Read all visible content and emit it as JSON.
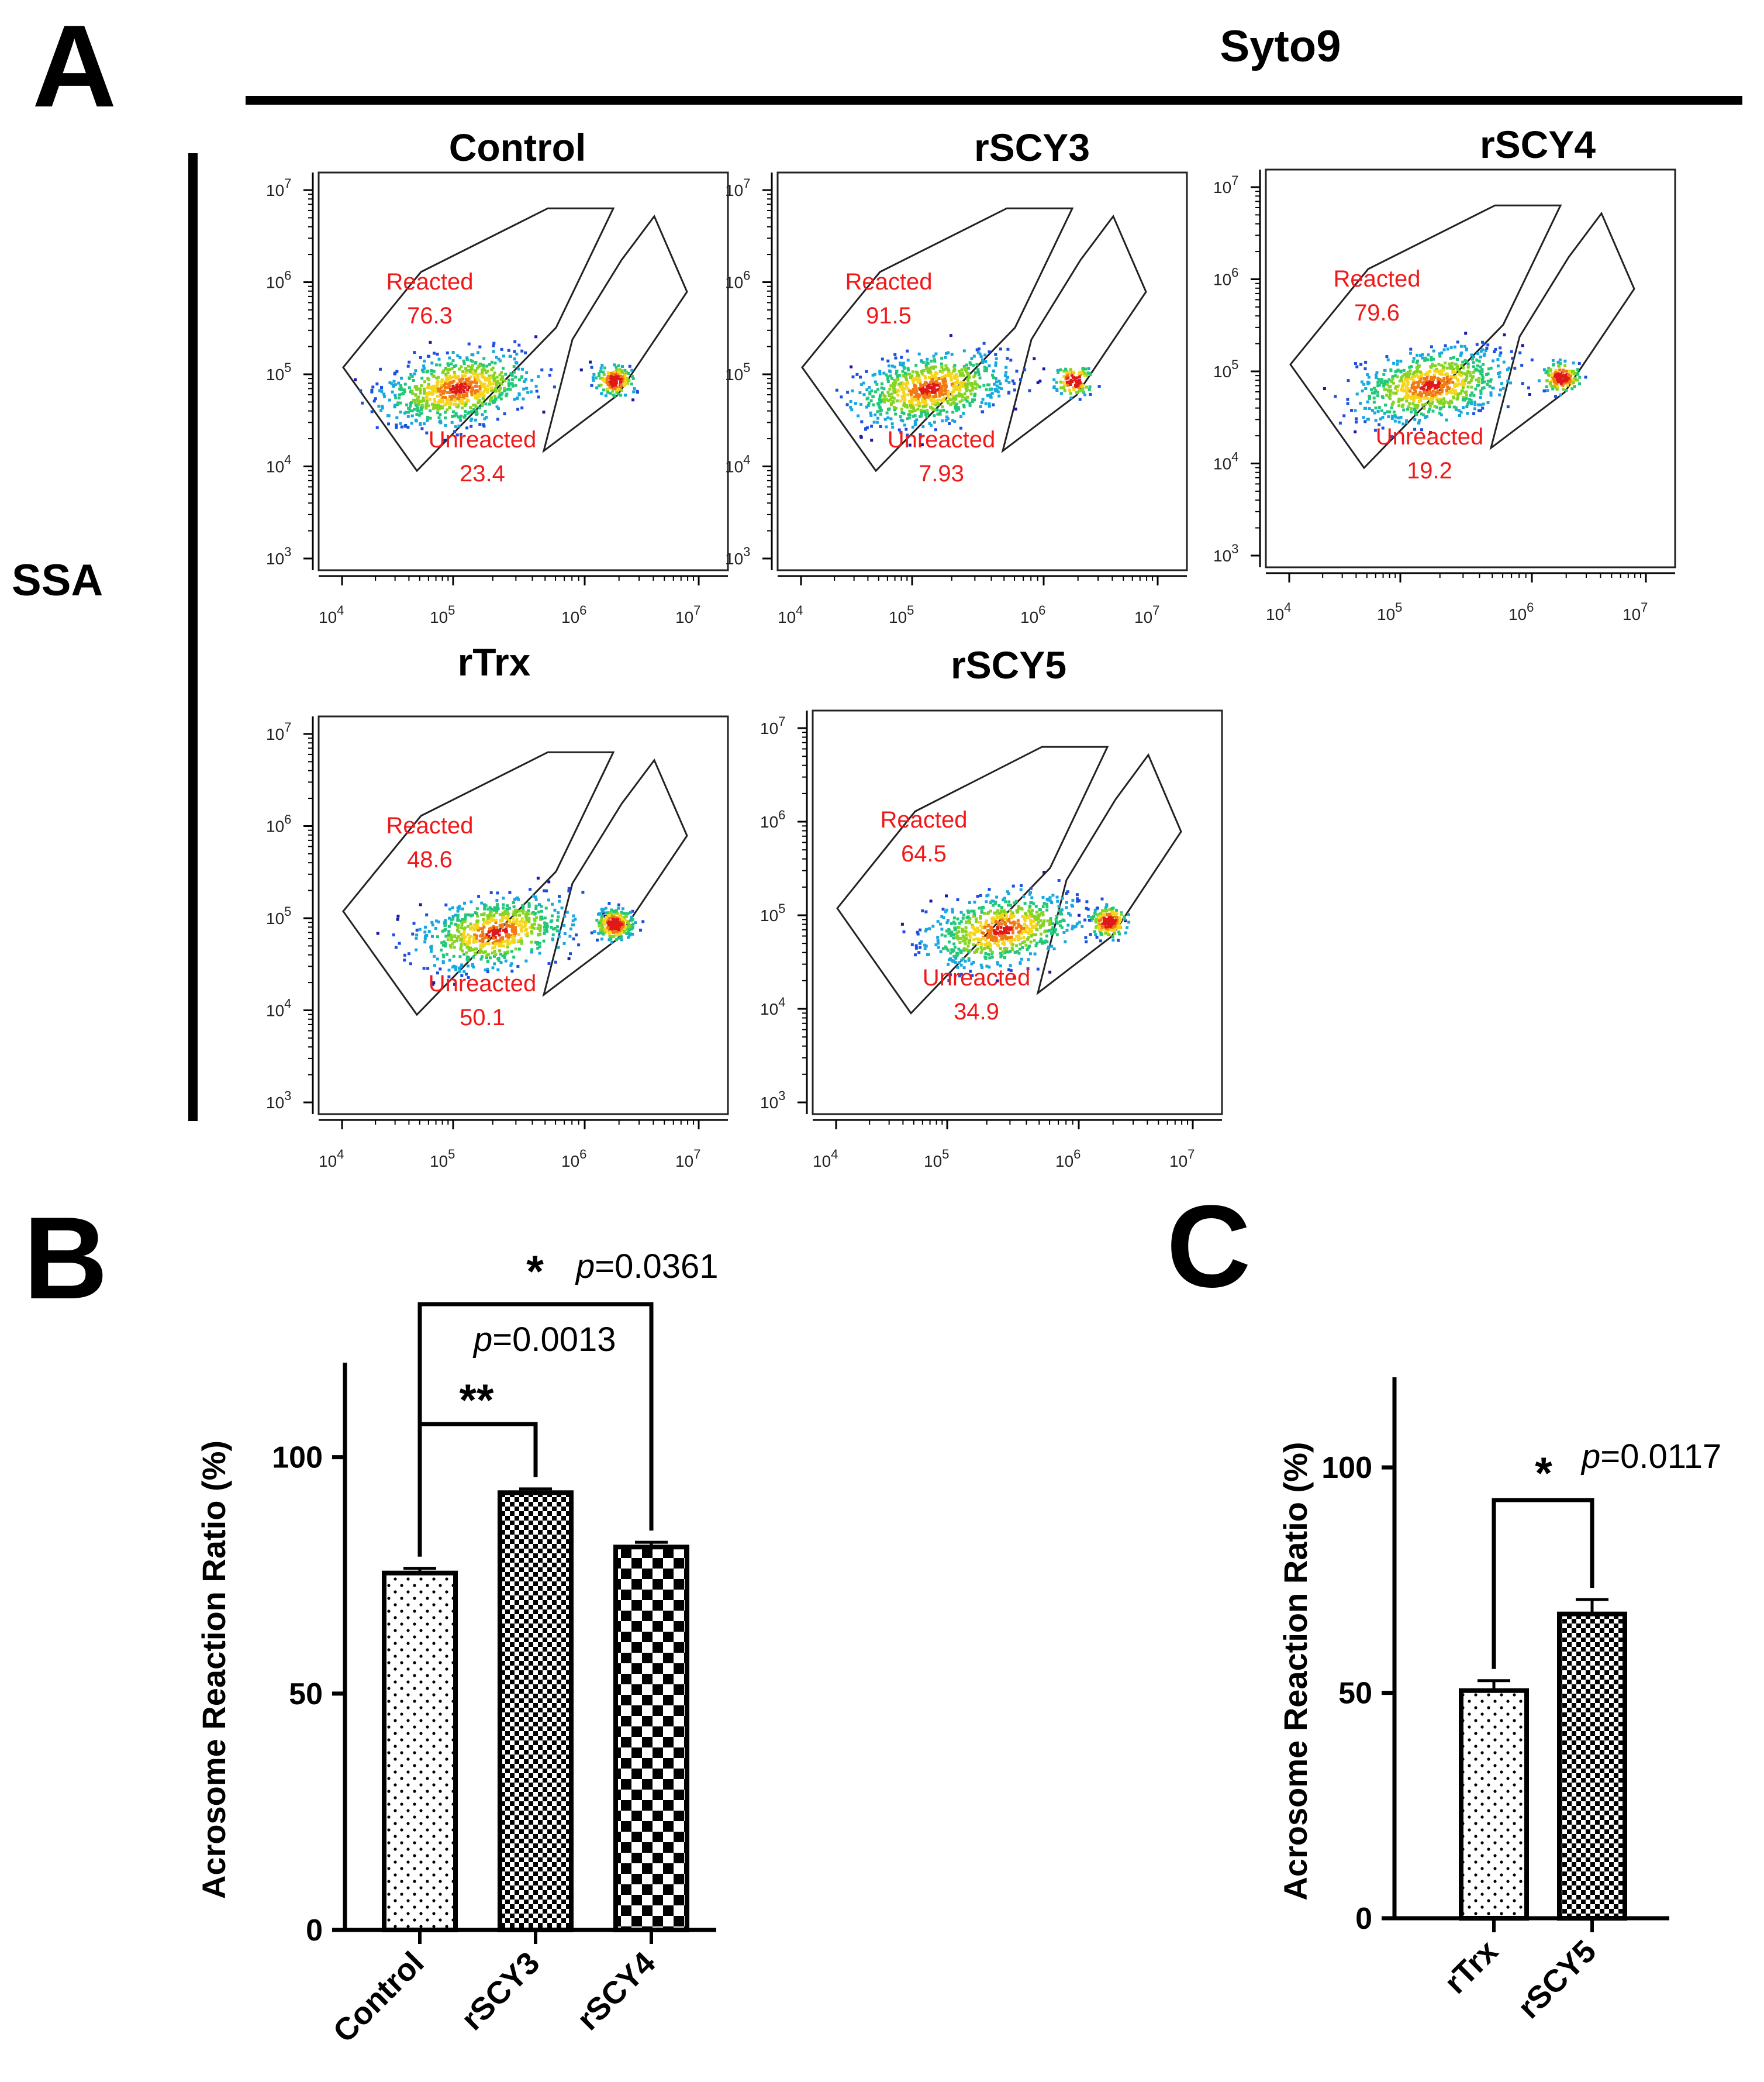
{
  "panel_letters": {
    "a": "A",
    "b": "B",
    "c": "C"
  },
  "panel_a": {
    "column_header": "Syto9",
    "row_header": "SSA",
    "tick_base": "10",
    "tick_exponents_x": [
      "4",
      "5",
      "6",
      "7"
    ],
    "tick_exponents_y": [
      "3",
      "4",
      "5",
      "6",
      "7"
    ],
    "colors": {
      "gate_label": "#f01818",
      "gate_line": "#222222",
      "axis": "#000000"
    },
    "plots": [
      {
        "title": "Control",
        "gates": [
          {
            "label": "Reacted",
            "percent": "76.3"
          },
          {
            "label": "Unreacted",
            "percent": "23.4"
          }
        ]
      },
      {
        "title": "rSCY3",
        "gates": [
          {
            "label": "Reacted",
            "percent": "91.5"
          },
          {
            "label": "Unreacted",
            "percent": "7.93"
          }
        ]
      },
      {
        "title": "rSCY4",
        "gates": [
          {
            "label": "Reacted",
            "percent": "79.6"
          },
          {
            "label": "Unreacted",
            "percent": "19.2"
          }
        ]
      },
      {
        "title": "rTrx",
        "gates": [
          {
            "label": "Reacted",
            "percent": "48.6"
          },
          {
            "label": "Unreacted",
            "percent": "50.1"
          }
        ]
      },
      {
        "title": "rSCY5",
        "gates": [
          {
            "label": "Reacted",
            "percent": "64.5"
          },
          {
            "label": "Unreacted",
            "percent": "34.9"
          }
        ]
      }
    ]
  },
  "chart_data": [
    {
      "type": "bar",
      "panel": "B",
      "categories": [
        "Control",
        "rSCY3",
        "rSCY4"
      ],
      "values": [
        75.5,
        92.5,
        81
      ],
      "errors": [
        1.0,
        0.8,
        1.0
      ],
      "patterns": [
        "dots",
        "fine-check",
        "coarse-check"
      ],
      "ylabel": "Acrosome Reaction Ratio (%)",
      "ylim": [
        0,
        120
      ],
      "yticks": [
        "0",
        "50",
        "100"
      ],
      "comparisons": [
        {
          "from": "Control",
          "to": "rSCY3",
          "stars": "**",
          "pvalue_prefix": "p",
          "pvalue_text": "=0.0013"
        },
        {
          "from": "Control",
          "to": "rSCY4",
          "stars": "*",
          "pvalue_prefix": "p",
          "pvalue_text": "=0.0361"
        }
      ]
    },
    {
      "type": "bar",
      "panel": "C",
      "categories": [
        "rTrx",
        "rSCY5"
      ],
      "values": [
        50.5,
        67.5
      ],
      "errors": [
        2.2,
        3.2
      ],
      "patterns": [
        "dots",
        "fine-check"
      ],
      "ylabel": "Acrosome Reaction Ratio (%)",
      "ylim": [
        0,
        120
      ],
      "yticks": [
        "0",
        "50",
        "100"
      ],
      "comparisons": [
        {
          "from": "rTrx",
          "to": "rSCY5",
          "stars": "*",
          "pvalue_prefix": "p",
          "pvalue_text": "=0.0117"
        }
      ]
    }
  ]
}
